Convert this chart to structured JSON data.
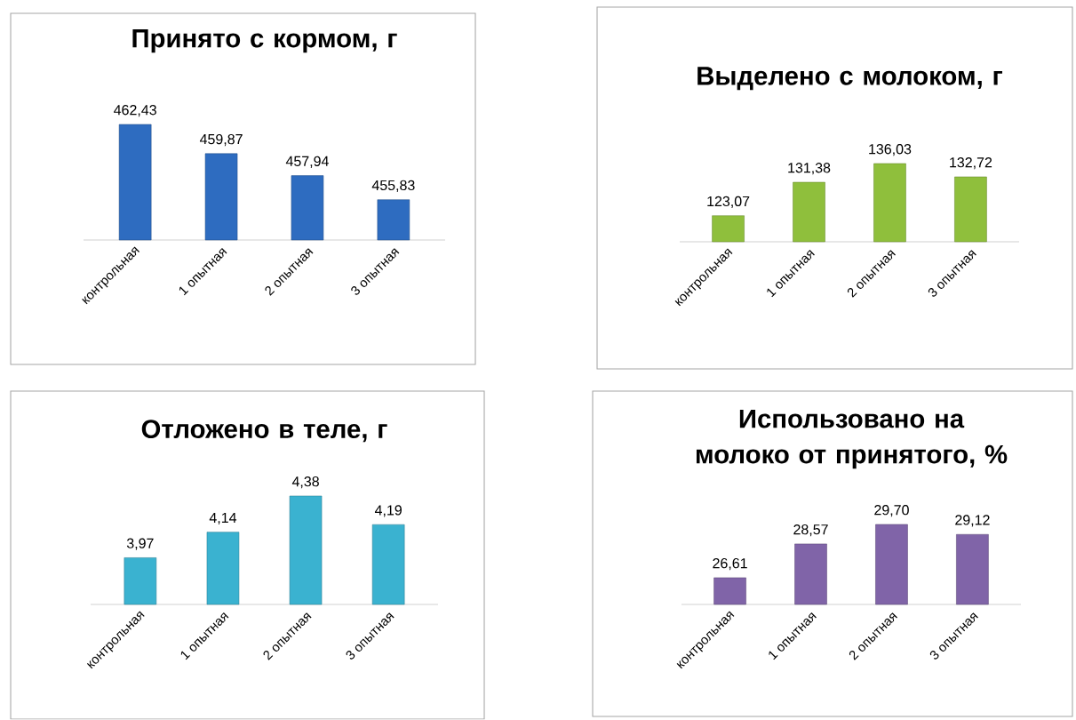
{
  "chart_data": [
    {
      "type": "bar",
      "title": "Принято с кормом, г",
      "categories": [
        "контрольная",
        "1 опытная",
        "2 опытная",
        "3 опытная"
      ],
      "values": [
        462.43,
        459.87,
        457.94,
        455.83
      ],
      "value_labels": [
        "462,43",
        "459,87",
        "457,94",
        "455,83"
      ],
      "color": "#2e6cc0",
      "ylim": [
        452.3,
        462.43
      ],
      "tick_labels": "x"
    },
    {
      "type": "bar",
      "title": "Выделено с молоком, г",
      "categories": [
        "контрольная",
        "1 опытная",
        "2 опытная",
        "3 опытная"
      ],
      "values": [
        123.07,
        131.38,
        136.03,
        132.72
      ],
      "value_labels": [
        "123,07",
        "131,38",
        "136,03",
        "132,72"
      ],
      "color": "#8fbf3c",
      "ylim": [
        116.6,
        136.03
      ],
      "tick_labels": "x"
    },
    {
      "type": "bar",
      "title": "Отложено в теле, г",
      "categories": [
        "контрольная",
        "1 опытная",
        "2 опытная",
        "3 опытная"
      ],
      "values": [
        3.97,
        4.14,
        4.38,
        4.19
      ],
      "value_labels": [
        "3,97",
        "4,14",
        "4,38",
        "4,19"
      ],
      "color": "#3ab2d0",
      "ylim": [
        3.66,
        4.38
      ],
      "tick_labels": "x"
    },
    {
      "type": "bar",
      "title": "Использовано на молоко от принятого, %",
      "categories": [
        "контрольная",
        "1 опытная",
        "2 опытная",
        "3 опытная"
      ],
      "values": [
        26.61,
        28.57,
        29.7,
        29.12
      ],
      "value_labels": [
        "26,61",
        "28,57",
        "29,70",
        "29,12"
      ],
      "color": "#8064a8",
      "ylim": [
        25.06,
        29.7
      ],
      "tick_labels": "x"
    }
  ]
}
